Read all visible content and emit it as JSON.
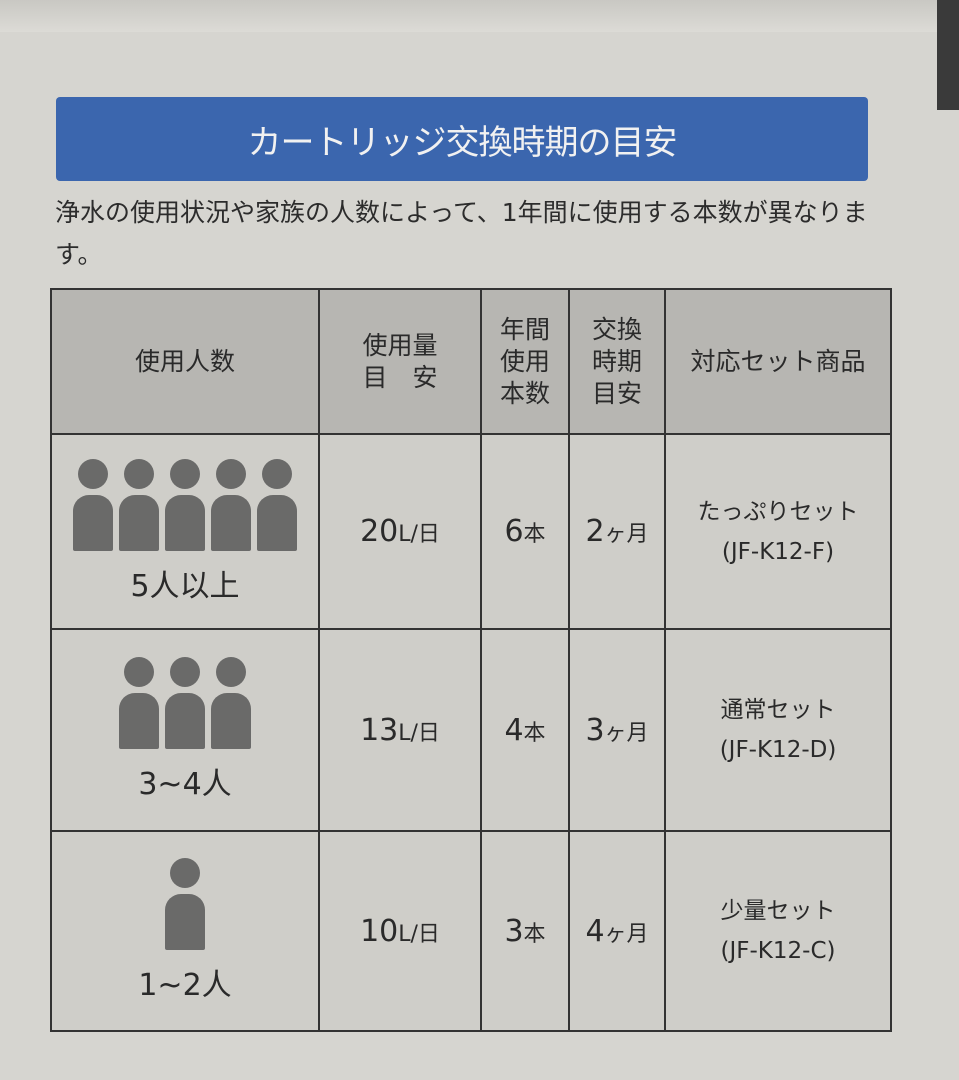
{
  "title": "カートリッジ交換時期の目安",
  "intro": "浄水の使用状況や家族の人数によって、1年間に使用する本数が異なります。",
  "headers": {
    "people": "使用人数",
    "usage_1": "使用量",
    "usage_2": "目　安",
    "annual_1": "年間",
    "annual_2": "使用",
    "annual_3": "本数",
    "interval_1": "交換",
    "interval_2": "時期",
    "interval_3": "目安",
    "product": "対応セット商品"
  },
  "rows": [
    {
      "icon_count": 5,
      "people": "5人以上",
      "usage": "20",
      "usage_unit": "L/日",
      "annual": "6",
      "annual_unit": "本",
      "interval": "2",
      "interval_unit": "ヶ月",
      "product": "たっぷりセット",
      "model": "(JF-K12-F)"
    },
    {
      "icon_count": 3,
      "people": "3~4人",
      "usage": "13",
      "usage_unit": "L/日",
      "annual": "4",
      "annual_unit": "本",
      "interval": "3",
      "interval_unit": "ヶ月",
      "product": "通常セット",
      "model": "(JF-K12-D)"
    },
    {
      "icon_count": 1,
      "people": "1~2人",
      "usage": "10",
      "usage_unit": "L/日",
      "annual": "3",
      "annual_unit": "本",
      "interval": "4",
      "interval_unit": "ヶ月",
      "product": "少量セット",
      "model": "(JF-K12-C)"
    }
  ]
}
